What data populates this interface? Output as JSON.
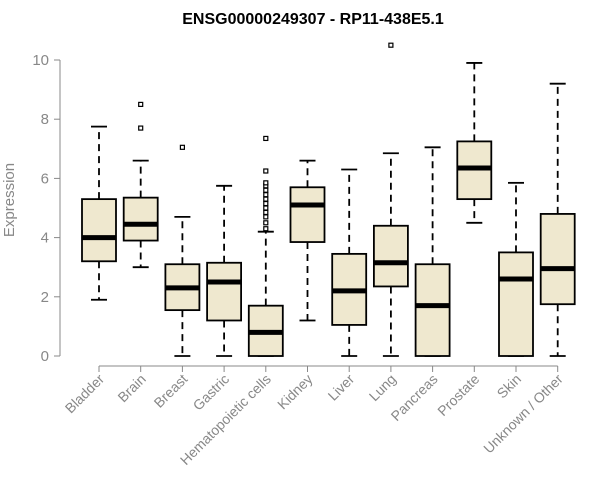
{
  "chart_data": {
    "type": "boxplot",
    "title": "ENSG00000249307 - RP11-438E5.1",
    "xlabel": "",
    "ylabel": "Expression",
    "ylim": [
      0,
      10
    ],
    "yticks": [
      0,
      2,
      4,
      6,
      8,
      10
    ],
    "grid": false,
    "colors": {
      "box_fill": "#efe8cf",
      "stroke": "#000000",
      "axis_text": "#888888"
    },
    "categories": [
      "Bladder",
      "Brain",
      "Breast",
      "Gastric",
      "Hematopoietic cells",
      "Kidney",
      "Liver",
      "Lung",
      "Pancreas",
      "Prostate",
      "Skin",
      "Unknown / Other"
    ],
    "boxes": [
      {
        "min": 1.9,
        "q1": 3.2,
        "median": 4.0,
        "q3": 5.3,
        "max": 7.75,
        "outliers": []
      },
      {
        "min": 3.0,
        "q1": 3.9,
        "median": 4.45,
        "q3": 5.35,
        "max": 6.6,
        "outliers": [
          7.7,
          8.5
        ]
      },
      {
        "min": 0.0,
        "q1": 1.55,
        "median": 2.3,
        "q3": 3.1,
        "max": 4.7,
        "outliers": [
          7.05
        ]
      },
      {
        "min": 0.0,
        "q1": 1.2,
        "median": 2.5,
        "q3": 3.15,
        "max": 5.75,
        "outliers": []
      },
      {
        "min": 0.0,
        "q1": 0.0,
        "median": 0.8,
        "q3": 1.7,
        "max": 4.2,
        "outliers": [
          4.3,
          4.5,
          4.7,
          4.85,
          5.0,
          5.15,
          5.3,
          5.45,
          5.6,
          5.75,
          5.85,
          6.25,
          7.35
        ]
      },
      {
        "min": 1.2,
        "q1": 3.85,
        "median": 5.1,
        "q3": 5.7,
        "max": 6.6,
        "outliers": []
      },
      {
        "min": 0.0,
        "q1": 1.05,
        "median": 2.2,
        "q3": 3.45,
        "max": 6.3,
        "outliers": []
      },
      {
        "min": 0.0,
        "q1": 2.35,
        "median": 3.15,
        "q3": 4.4,
        "max": 6.85,
        "outliers": [
          10.5
        ]
      },
      {
        "min": 0.0,
        "q1": 0.0,
        "median": 1.7,
        "q3": 3.1,
        "max": 7.05,
        "outliers": []
      },
      {
        "min": 4.5,
        "q1": 5.3,
        "median": 6.35,
        "q3": 7.25,
        "max": 9.9,
        "outliers": []
      },
      {
        "min": 0.0,
        "q1": 0.0,
        "median": 2.6,
        "q3": 3.5,
        "max": 5.85,
        "outliers": []
      },
      {
        "min": 0.0,
        "q1": 1.75,
        "median": 2.95,
        "q3": 4.8,
        "max": 9.2,
        "outliers": []
      }
    ]
  }
}
